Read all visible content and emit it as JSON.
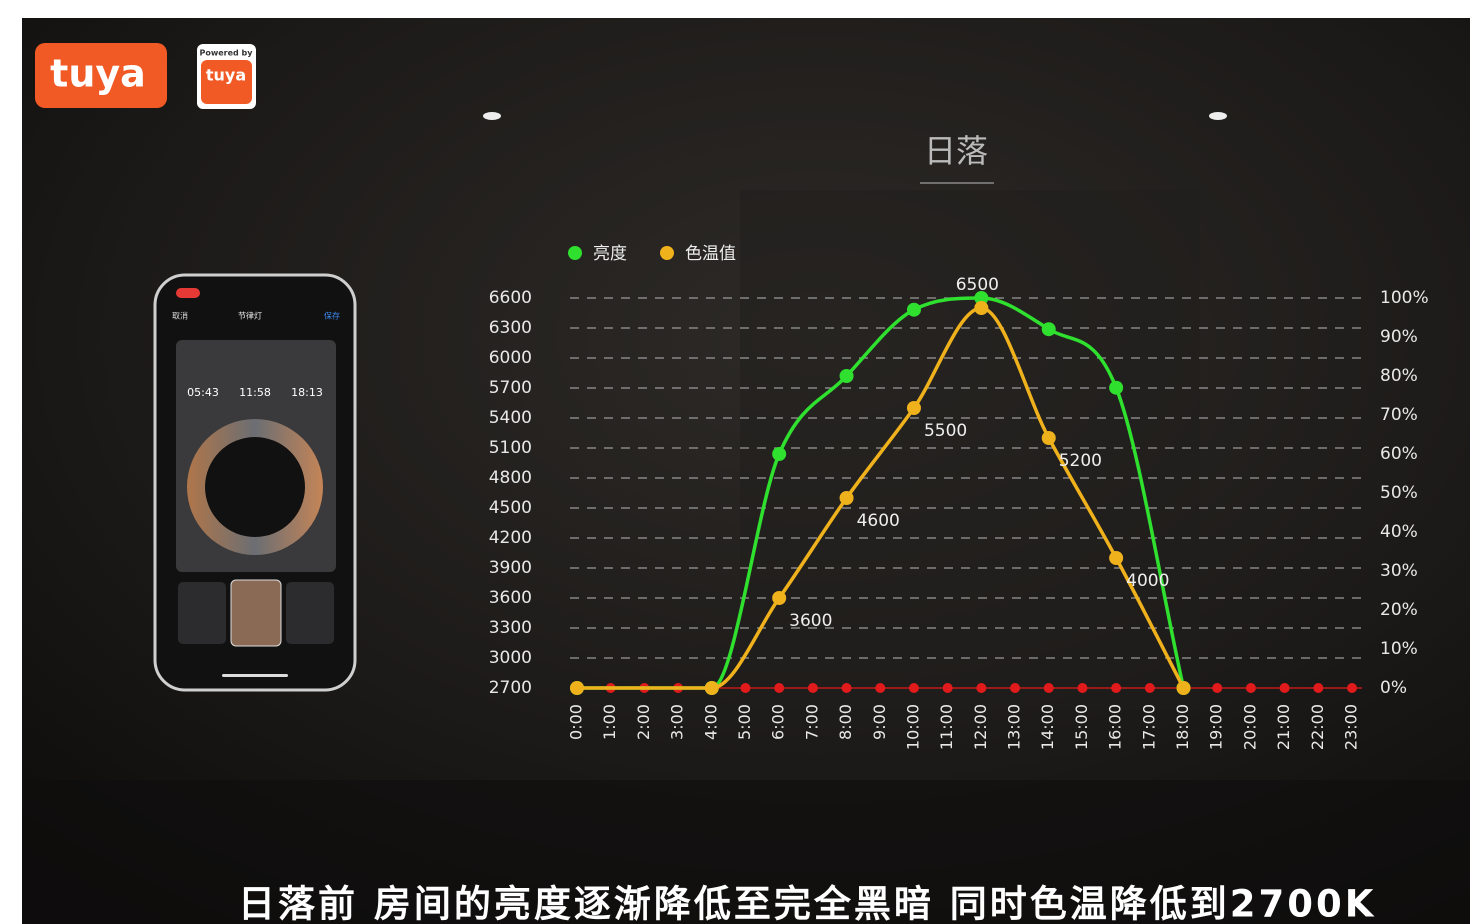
{
  "logo": {
    "brand": "tuya",
    "badge_top": "Powered by",
    "badge": "tuya"
  },
  "phone": {
    "cancel": "取消",
    "title": "节律灯",
    "save": "保存",
    "times": [
      "05:43",
      "11:58",
      "18:13"
    ]
  },
  "caption": "日落前 房间的亮度逐渐降低至完全黑暗 同时色温降低到2700K",
  "chart_data": {
    "type": "line",
    "title": "日落",
    "xlim": [
      0,
      23
    ],
    "xticks": [
      {
        "value": 0,
        "label": "0:00"
      },
      {
        "value": 1,
        "label": "1:00"
      },
      {
        "value": 2,
        "label": "2:00"
      },
      {
        "value": 3,
        "label": "3:00"
      },
      {
        "value": 4,
        "label": "4:00"
      },
      {
        "value": 5,
        "label": "5:00"
      },
      {
        "value": 6,
        "label": "6:00"
      },
      {
        "value": 7,
        "label": "7:00"
      },
      {
        "value": 8,
        "label": "8:00"
      },
      {
        "value": 9,
        "label": "9:00"
      },
      {
        "value": 10,
        "label": "10:00"
      },
      {
        "value": 11,
        "label": "11:00"
      },
      {
        "value": 12,
        "label": "12:00"
      },
      {
        "value": 13,
        "label": "13:00"
      },
      {
        "value": 14,
        "label": "14:00"
      },
      {
        "value": 15,
        "label": "15:00"
      },
      {
        "value": 16,
        "label": "16:00"
      },
      {
        "value": 17,
        "label": "17:00"
      },
      {
        "value": 18,
        "label": "18:00"
      },
      {
        "value": 19,
        "label": "19:00"
      },
      {
        "value": 20,
        "label": "20:00"
      },
      {
        "value": 21,
        "label": "21:00"
      },
      {
        "value": 22,
        "label": "22:00"
      },
      {
        "value": 23,
        "label": "23:00"
      }
    ],
    "ylim": [
      2700,
      6600
    ],
    "yticks": [
      2700,
      3000,
      3300,
      3600,
      3900,
      4200,
      4500,
      4800,
      5100,
      5400,
      5700,
      6000,
      6300,
      6600
    ],
    "y2lim": [
      0,
      100
    ],
    "y2ticks": [
      {
        "value": 0,
        "label": "0%"
      },
      {
        "value": 10,
        "label": "10%"
      },
      {
        "value": 20,
        "label": "20%"
      },
      {
        "value": 30,
        "label": "30%"
      },
      {
        "value": 40,
        "label": "40%"
      },
      {
        "value": 50,
        "label": "50%"
      },
      {
        "value": 60,
        "label": "60%"
      },
      {
        "value": 70,
        "label": "70%"
      },
      {
        "value": 80,
        "label": "80%"
      },
      {
        "value": 90,
        "label": "90%"
      },
      {
        "value": 100,
        "label": "100%"
      }
    ],
    "grid": true,
    "legend": "top-left",
    "tick_color": "#e11b1b",
    "series": [
      {
        "name": "亮度",
        "color": "#2fe02f",
        "axis": "y2",
        "x": [
          0,
          4,
          6,
          8,
          10,
          12,
          14,
          16,
          18
        ],
        "values": [
          0,
          0,
          60,
          80,
          97,
          100,
          92,
          77,
          0
        ]
      },
      {
        "name": "色温值",
        "color": "#f0b21c",
        "x": [
          0,
          4,
          6,
          8,
          10,
          12,
          14,
          16,
          18
        ],
        "values": [
          2700,
          2700,
          3600,
          4600,
          5500,
          6500,
          5200,
          4000,
          2700
        ],
        "data_labels": true
      }
    ]
  }
}
